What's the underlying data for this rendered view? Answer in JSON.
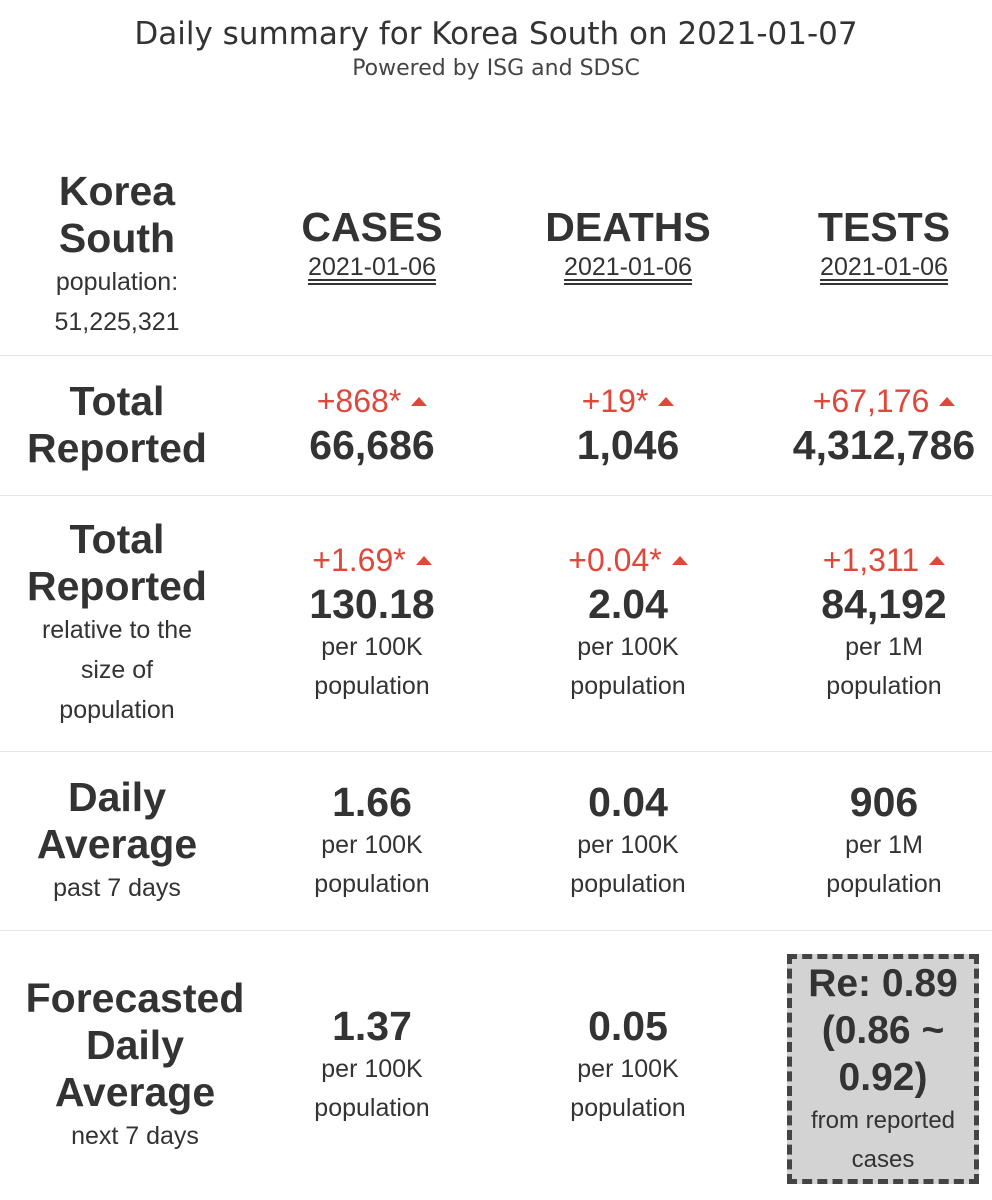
{
  "header": {
    "title": "Daily summary for Korea South on 2021-01-07",
    "subtitle": "Powered by ISG and SDSC"
  },
  "country": {
    "name_line1": "Korea",
    "name_line2": "South",
    "population_label": "population:",
    "population_value": "51,225,321"
  },
  "columns": {
    "cases": {
      "label": "CASES",
      "date": "2021-01-06"
    },
    "deaths": {
      "label": "DEATHS",
      "date": "2021-01-06"
    },
    "tests": {
      "label": "TESTS",
      "date": "2021-01-06"
    }
  },
  "total_reported": {
    "label_line1": "Total",
    "label_line2": "Reported",
    "cases": {
      "delta": "+868*",
      "value": "66,686"
    },
    "deaths": {
      "delta": "+19*",
      "value": "1,046"
    },
    "tests": {
      "delta": "+67,176",
      "value": "4,312,786"
    }
  },
  "relative": {
    "label_line1": "Total",
    "label_line2": "Reported",
    "sub_line1": "relative to the",
    "sub_line2": "size of",
    "sub_line3": "population",
    "cases": {
      "delta": "+1.69*",
      "value": "130.18",
      "unit1": "per 100K",
      "unit2": "population"
    },
    "deaths": {
      "delta": "+0.04*",
      "value": "2.04",
      "unit1": "per 100K",
      "unit2": "population"
    },
    "tests": {
      "delta": "+1,311",
      "value": "84,192",
      "unit1": "per 1M",
      "unit2": "population"
    }
  },
  "daily_average": {
    "label_line1": "Daily",
    "label_line2": "Average",
    "sub": "past 7 days",
    "cases": {
      "value": "1.66",
      "unit1": "per 100K",
      "unit2": "population"
    },
    "deaths": {
      "value": "0.04",
      "unit1": "per 100K",
      "unit2": "population"
    },
    "tests": {
      "value": "906",
      "unit1": "per 1M",
      "unit2": "population"
    }
  },
  "forecast": {
    "label_line1": "Forecasted",
    "label_line2": "Daily",
    "label_line3": "Average",
    "sub": "next 7 days",
    "cases": {
      "value": "1.37",
      "unit1": "per 100K",
      "unit2": "population"
    },
    "deaths": {
      "value": "0.05",
      "unit1": "per 100K",
      "unit2": "population"
    },
    "re": {
      "line1": "Re: 0.89",
      "line2": "(0.86 ~",
      "line3": "0.92)",
      "sub1": "from reported",
      "sub2": "cases"
    }
  },
  "colors": {
    "delta_red": "#e0473b",
    "text": "#333333",
    "re_box_bg": "#d3d3d3"
  }
}
